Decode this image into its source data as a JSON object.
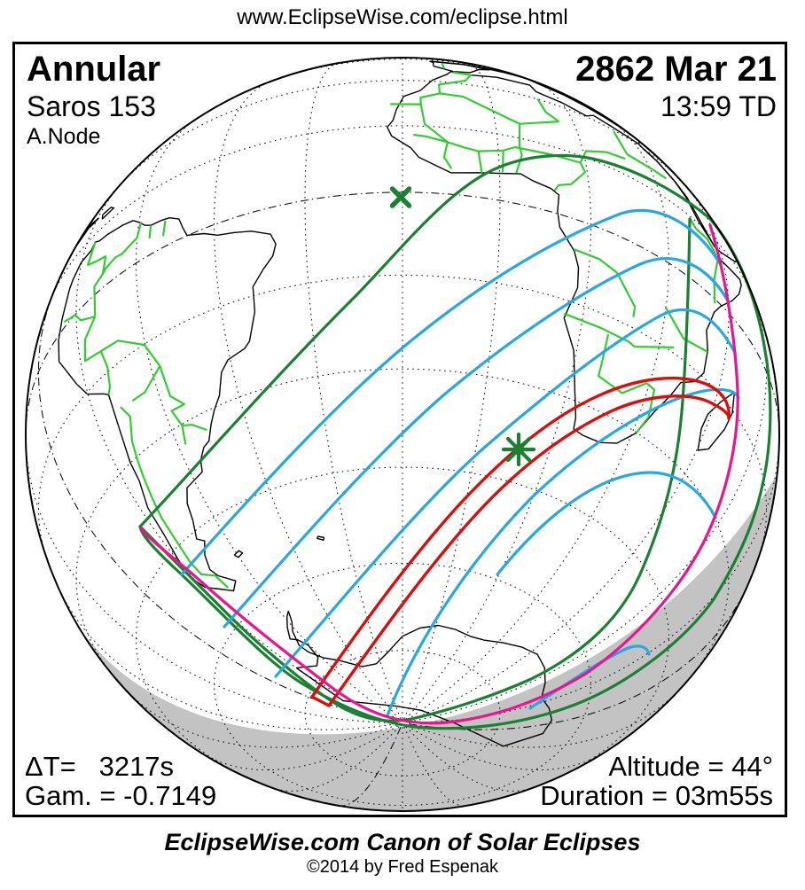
{
  "page": {
    "url_banner": "www.EclipseWise.com/eclipse.html"
  },
  "map": {
    "eclipse_type": "Annular",
    "saros": "Saros 153",
    "node": "A.Node",
    "date": "2862 Mar 21",
    "time": "13:59 TD",
    "stats": {
      "delta_t": "ΔT=   3217s",
      "gamma": "Gam. = -0.7149",
      "altitude": "Altitude = 44°",
      "duration": "Duration = 03m55s"
    },
    "markers": {
      "greatest_eclipse": "asterisk-marker",
      "subsolar_point": "x-marker"
    }
  },
  "footer": {
    "title": "EclipseWise.com Canon of Solar Eclipses",
    "copyright": "©2014 by Fred Espenak"
  },
  "colors": {
    "coastlines": "#000000",
    "country_borders": "#33cc33",
    "eclipse_limits_green": "#1a8032",
    "magnitude_lines_blue": "#29a8e0",
    "central_path_red": "#dc0d0d",
    "sunrise_sunset_magenta": "#ea1390",
    "night_shading_gray": "#c3c3c3"
  }
}
